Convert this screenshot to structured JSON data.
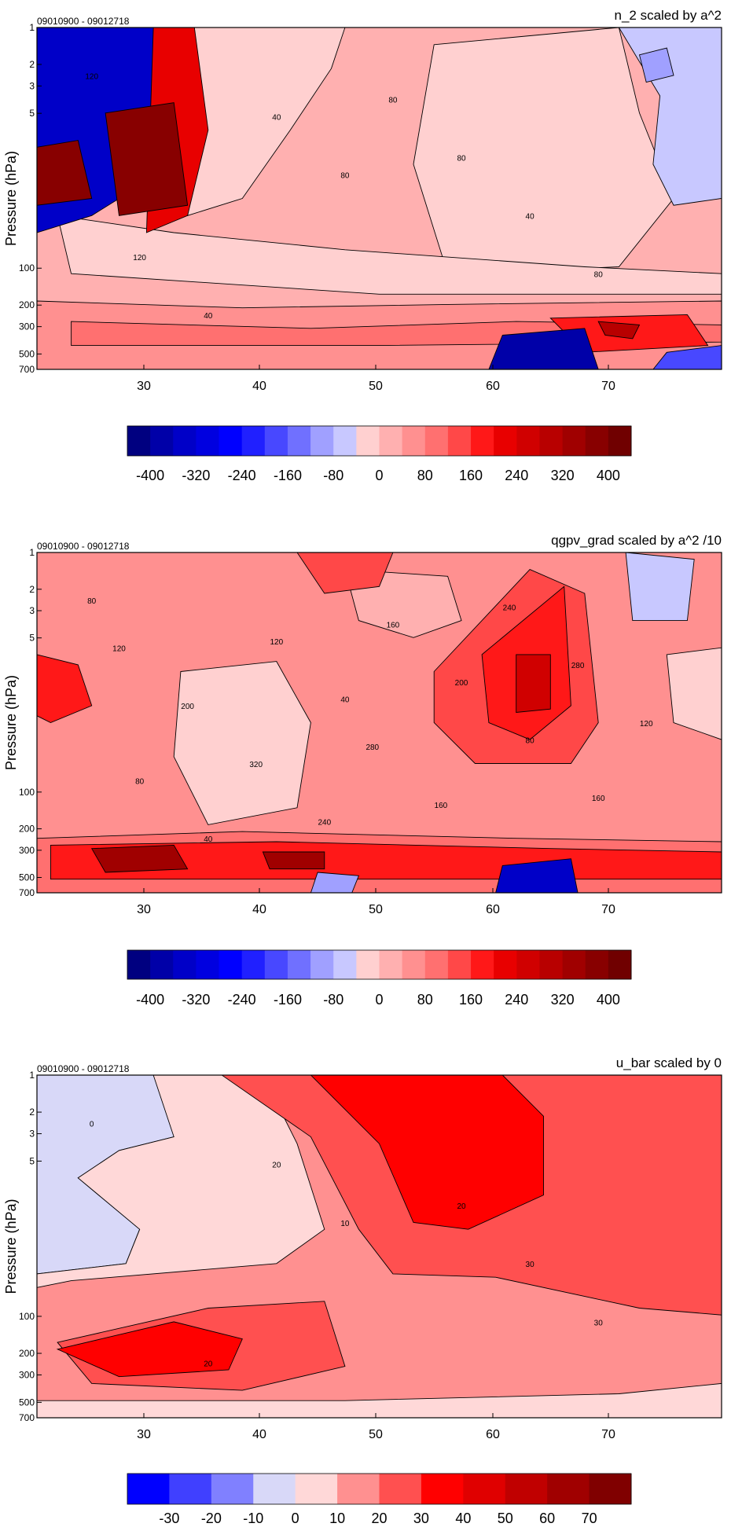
{
  "chart_data": [
    {
      "type": "heatmap",
      "title": "n_2 scaled by a^2",
      "date_range": "09010900 - 09012718",
      "ylabel": "Pressure (hPa)",
      "xlabel": "",
      "x_ticks": [
        "30",
        "40",
        "50",
        "60",
        "70"
      ],
      "y_ticks": [
        "1",
        "2",
        "3",
        "5",
        "100",
        "200",
        "300",
        "500",
        "700"
      ],
      "xlim": [
        21,
        80
      ],
      "colorbar": {
        "levels": [
          "-400",
          "-320",
          "-240",
          "-160",
          "-80",
          "0",
          "80",
          "160",
          "240",
          "320",
          "400"
        ],
        "colors": [
          "#000080",
          "#0000a8",
          "#0000c8",
          "#0000e0",
          "#0000ff",
          "#2020ff",
          "#4848ff",
          "#7070ff",
          "#a0a0ff",
          "#c8c8ff",
          "#ffd0d0",
          "#ffb0b0",
          "#ff9090",
          "#ff7070",
          "#ff4848",
          "#ff1818",
          "#e80000",
          "#d00000",
          "#b80000",
          "#a00000",
          "#880000",
          "#700000"
        ]
      },
      "contour_labels": [
        "120",
        "80",
        "80",
        "40",
        "40",
        "40",
        "80",
        "120",
        "80"
      ]
    },
    {
      "type": "heatmap",
      "title": "qgpv_grad scaled by a^2 /10",
      "date_range": "09010900 - 09012718",
      "ylabel": "Pressure (hPa)",
      "xlabel": "",
      "x_ticks": [
        "30",
        "40",
        "50",
        "60",
        "70"
      ],
      "y_ticks": [
        "1",
        "2",
        "3",
        "5",
        "100",
        "200",
        "300",
        "500",
        "700"
      ],
      "xlim": [
        21,
        80
      ],
      "colorbar": {
        "levels": [
          "-400",
          "-320",
          "-240",
          "-160",
          "-80",
          "0",
          "80",
          "160",
          "240",
          "320",
          "400"
        ],
        "colors": [
          "#000080",
          "#0000a8",
          "#0000c8",
          "#0000e0",
          "#0000ff",
          "#2020ff",
          "#4848ff",
          "#7070ff",
          "#a0a0ff",
          "#c8c8ff",
          "#ffd0d0",
          "#ffb0b0",
          "#ff9090",
          "#ff7070",
          "#ff4848",
          "#ff1818",
          "#e80000",
          "#d00000",
          "#b80000",
          "#a00000",
          "#880000",
          "#700000"
        ]
      },
      "contour_labels": [
        "80",
        "40",
        "160",
        "120",
        "80",
        "40",
        "200",
        "80",
        "160",
        "120",
        "240",
        "280",
        "320",
        "240",
        "200",
        "160",
        "120",
        "280"
      ]
    },
    {
      "type": "heatmap",
      "title": "u_bar scaled by 0",
      "date_range": "09010900 - 09012718",
      "ylabel": "Pressure (hPa)",
      "xlabel": "",
      "x_ticks": [
        "30",
        "40",
        "50",
        "60",
        "70"
      ],
      "y_ticks": [
        "1",
        "2",
        "3",
        "5",
        "100",
        "200",
        "300",
        "500",
        "700"
      ],
      "xlim": [
        21,
        80
      ],
      "colorbar": {
        "levels": [
          "-30",
          "-20",
          "-10",
          "0",
          "10",
          "20",
          "30",
          "40",
          "50",
          "60",
          "70"
        ],
        "colors": [
          "#0000ff",
          "#4040ff",
          "#8080ff",
          "#d8d8f8",
          "#ffd8d8",
          "#ff9090",
          "#ff5050",
          "#ff0000",
          "#e00000",
          "#c00000",
          "#a00000",
          "#800000"
        ]
      },
      "contour_labels": [
        "0",
        "10",
        "30",
        "20",
        "30",
        "20",
        "20"
      ]
    }
  ]
}
